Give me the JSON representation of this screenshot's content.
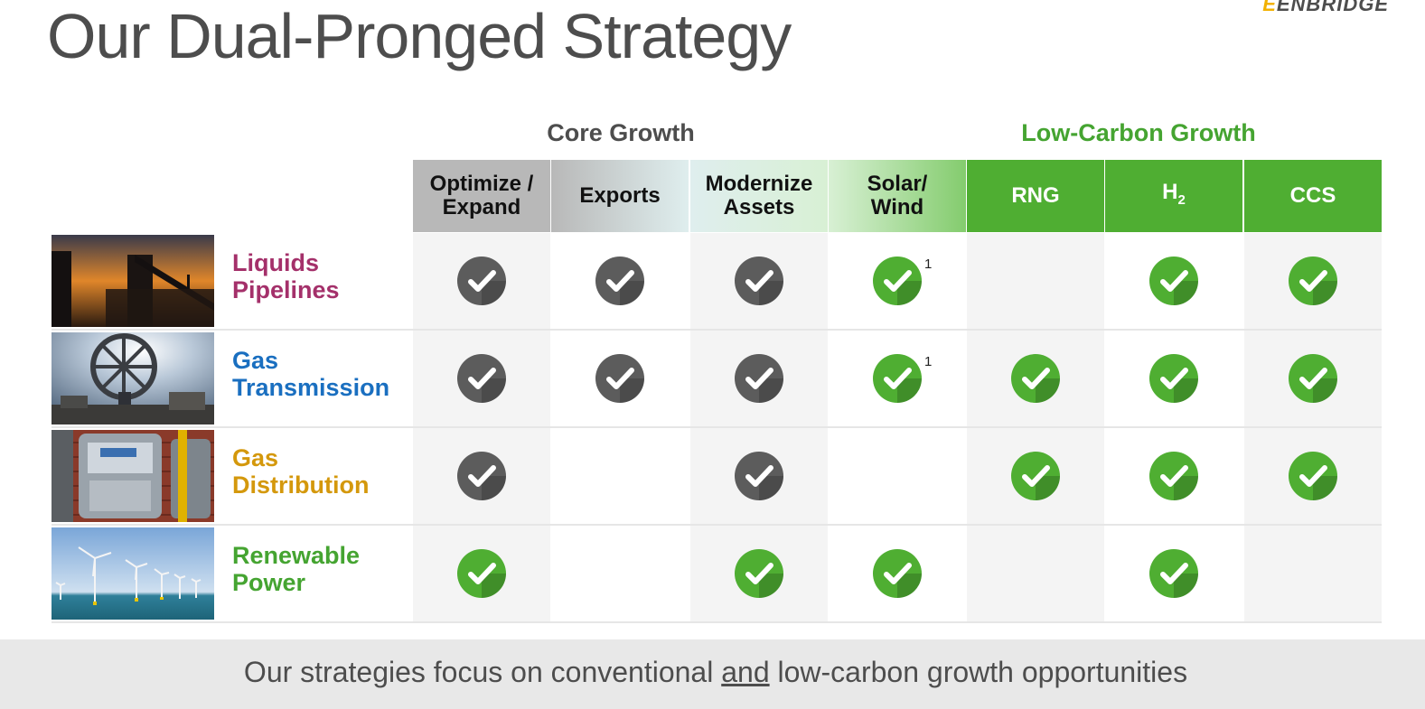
{
  "slide": {
    "logo": {
      "mark": "E",
      "text": "ENBRIDGE"
    },
    "title": "Our Dual-Pronged Strategy",
    "groups": {
      "core": "Core Growth",
      "low_carbon": "Low-Carbon Growth"
    },
    "columns": [
      {
        "id": "optimize",
        "label_line1": "Optimize /",
        "label_line2": "Expand",
        "fill": "#b8b8b8"
      },
      {
        "id": "exports",
        "label_line1": "Exports",
        "label_line2": "",
        "fill": "#dfeeee"
      },
      {
        "id": "modernize",
        "label_line1": "Modernize",
        "label_line2": "Assets",
        "fill": "#d8f0d4"
      },
      {
        "id": "solar",
        "label_line1": "Solar/",
        "label_line2": "Wind",
        "fill": "#84cc6e"
      },
      {
        "id": "rng",
        "label_line1": "RNG",
        "label_line2": "",
        "fill": "#4fae32"
      },
      {
        "id": "h2",
        "label_line1": "H",
        "label_sub": "2",
        "fill": "#4fae32"
      },
      {
        "id": "ccs",
        "label_line1": "CCS",
        "label_line2": "",
        "fill": "#4fae32"
      }
    ],
    "rows": [
      {
        "id": "liquids",
        "line1": "Liquids",
        "line2": "Pipelines",
        "color": "#a4306a",
        "checks": [
          "gray",
          "gray",
          "gray",
          "green",
          "",
          "green",
          "green"
        ],
        "notes": [
          "",
          "",
          "",
          "1",
          "",
          "",
          ""
        ]
      },
      {
        "id": "gas-transmission",
        "line1": "Gas",
        "line2": "Transmission",
        "color": "#1a6fc0",
        "checks": [
          "gray",
          "gray",
          "gray",
          "green",
          "green",
          "green",
          "green"
        ],
        "notes": [
          "",
          "",
          "",
          "1",
          "",
          "",
          ""
        ]
      },
      {
        "id": "gas-distribution",
        "line1": "Gas",
        "line2": "Distribution",
        "color": "#d4980c",
        "checks": [
          "gray",
          "",
          "gray",
          "",
          "green",
          "green",
          "green"
        ],
        "notes": [
          "",
          "",
          "",
          "",
          "",
          "",
          ""
        ]
      },
      {
        "id": "renewable",
        "line1": "Renewable",
        "line2": "Power",
        "color": "#45a431",
        "checks": [
          "green",
          "",
          "green",
          "green",
          "",
          "green",
          ""
        ],
        "notes": [
          "",
          "",
          "",
          "",
          "",
          "",
          ""
        ]
      }
    ],
    "footer": {
      "before": "Our strategies focus on conventional ",
      "emphasis": "and",
      "after": " low-carbon growth opportunities"
    },
    "icons": {
      "check": "check-circle-icon"
    }
  }
}
